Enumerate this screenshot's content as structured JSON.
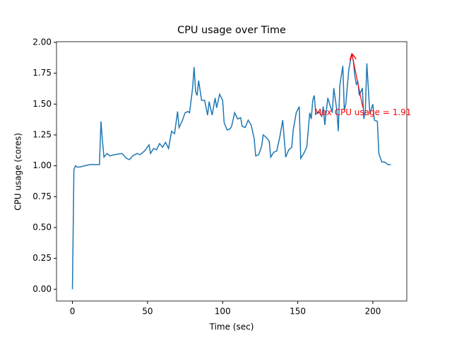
{
  "chart_data": {
    "type": "line",
    "title": "CPU usage over Time",
    "xlabel": "Time (sec)",
    "ylabel": "CPU usage (cores)",
    "x": [
      0,
      1,
      2,
      3,
      5,
      8,
      12,
      17,
      18,
      19,
      20,
      21,
      23,
      25,
      28,
      33,
      36,
      38,
      40,
      43,
      45,
      48,
      51,
      52,
      54,
      56,
      58,
      60,
      62,
      64,
      66,
      68,
      70,
      71,
      73,
      75,
      77,
      78,
      80,
      81,
      82,
      83,
      84,
      86,
      88,
      90,
      91,
      93,
      95,
      96,
      98,
      100,
      101,
      103,
      105,
      106,
      108,
      110,
      112,
      113,
      115,
      117,
      119,
      121,
      122,
      124,
      126,
      127,
      129,
      131,
      132,
      134,
      136,
      138,
      140,
      141,
      142,
      144,
      146,
      147,
      149,
      151,
      152,
      154,
      156,
      158,
      159,
      160,
      161,
      162,
      164,
      166,
      167,
      168,
      170,
      172,
      173,
      174,
      176,
      177,
      178,
      180,
      181,
      182,
      184,
      186,
      187,
      188,
      189,
      190,
      191,
      193,
      194,
      195,
      196,
      198,
      200,
      201,
      203,
      204,
      206,
      208,
      210,
      212
    ],
    "series": [
      {
        "name": "CPU usage",
        "color": "#1f77b4",
        "values": [
          0.0,
          0.97,
          1.0,
          0.99,
          0.99,
          1.0,
          1.01,
          1.01,
          1.01,
          1.36,
          1.2,
          1.07,
          1.1,
          1.08,
          1.09,
          1.1,
          1.06,
          1.05,
          1.08,
          1.1,
          1.09,
          1.12,
          1.17,
          1.1,
          1.14,
          1.13,
          1.18,
          1.15,
          1.19,
          1.14,
          1.28,
          1.26,
          1.44,
          1.31,
          1.36,
          1.43,
          1.44,
          1.43,
          1.63,
          1.8,
          1.6,
          1.57,
          1.69,
          1.53,
          1.53,
          1.41,
          1.52,
          1.41,
          1.55,
          1.47,
          1.58,
          1.53,
          1.35,
          1.29,
          1.3,
          1.32,
          1.43,
          1.38,
          1.39,
          1.32,
          1.31,
          1.37,
          1.33,
          1.22,
          1.08,
          1.09,
          1.16,
          1.25,
          1.23,
          1.2,
          1.07,
          1.11,
          1.12,
          1.23,
          1.37,
          1.22,
          1.07,
          1.13,
          1.15,
          1.29,
          1.43,
          1.48,
          1.06,
          1.1,
          1.15,
          1.43,
          1.38,
          1.53,
          1.57,
          1.42,
          1.44,
          1.4,
          1.48,
          1.33,
          1.55,
          1.47,
          1.43,
          1.63,
          1.45,
          1.28,
          1.65,
          1.81,
          1.45,
          1.5,
          1.78,
          1.91,
          1.85,
          1.73,
          1.66,
          1.68,
          1.57,
          1.63,
          1.38,
          1.45,
          1.83,
          1.42,
          1.5,
          1.37,
          1.36,
          1.1,
          1.03,
          1.03,
          1.01,
          1.01
        ]
      }
    ],
    "xlim": [
      -10.6,
      222.6
    ],
    "ylim": [
      -0.0955,
      2.0055
    ],
    "xticks": [
      0,
      50,
      100,
      150,
      200
    ],
    "yticks": [
      {
        "value": 0,
        "label": "0.00"
      },
      {
        "value": 0.25,
        "label": "0.25"
      },
      {
        "value": 0.5,
        "label": "0.50"
      },
      {
        "value": 0.75,
        "label": "0.75"
      },
      {
        "value": 1,
        "label": "1.00"
      },
      {
        "value": 1.25,
        "label": "1.25"
      },
      {
        "value": 1.5,
        "label": "1.50"
      },
      {
        "value": 1.75,
        "label": "1.75"
      },
      {
        "value": 2,
        "label": "2.00"
      }
    ],
    "annotation": {
      "text": "Max CPU usage = 1.91",
      "xy": [
        186,
        1.91
      ],
      "xytext": [
        161,
        1.43
      ],
      "color": "red"
    }
  }
}
